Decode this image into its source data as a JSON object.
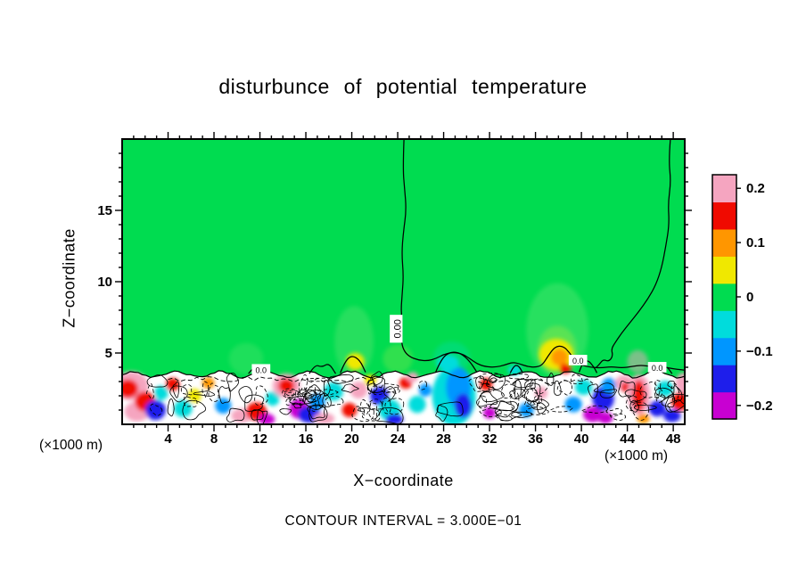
{
  "chart_data": {
    "type": "heatmap",
    "title": "disturbunce of potential temperature",
    "xlabel": "X−coordinate",
    "ylabel": "Z−coordinate",
    "x_unit_note": "(×1000 m)",
    "contour_interval_label": "CONTOUR INTERVAL = 3.000E−01",
    "contour_interval": 0.3,
    "xlim": [
      0,
      49
    ],
    "zlim": [
      0,
      20
    ],
    "x_major_ticks": [
      4,
      8,
      12,
      16,
      20,
      24,
      28,
      32,
      36,
      40,
      44,
      48
    ],
    "x_minor_step": 1,
    "z_major_ticks": [
      5,
      10,
      15
    ],
    "z_minor_step": 1,
    "background_value": 0,
    "colorbar": {
      "vmin": -0.225,
      "vmax": 0.225,
      "step": 0.05,
      "colors": [
        "#c800d2",
        "#1e1eeb",
        "#0096ff",
        "#00dcdc",
        "#00dc50",
        "#f0e800",
        "#ff9600",
        "#f00a00",
        "#f5a5c0"
      ],
      "tick_values": [
        0.2,
        0.1,
        0,
        -0.1,
        -0.2
      ],
      "tick_labels": [
        "0.2",
        "0.1",
        "0",
        "−0.1",
        "−0.2"
      ]
    },
    "band": {
      "top_z": 3.5,
      "amplitude": 0.2,
      "wavelength": 3.8,
      "jitter": 0.14
    },
    "plumes": [
      {
        "x": 20.2,
        "z": 5.8,
        "rx": 1.7,
        "rz": 2.5,
        "color": "#49e36b",
        "opacity": 0.5
      },
      {
        "x": 37.9,
        "z": 6.6,
        "rx": 2.7,
        "rz": 3.3,
        "color": "#49e36b",
        "opacity": 0.55
      },
      {
        "x": 37.9,
        "z": 5.2,
        "rx": 1.7,
        "rz": 1.7,
        "color": "#8ae84a",
        "opacity": 0.5
      },
      {
        "x": 10.8,
        "z": 4.6,
        "rx": 1.5,
        "rz": 1.1,
        "color": "#49e36b",
        "opacity": 0.4
      },
      {
        "x": 28.7,
        "z": 4.7,
        "rx": 1.6,
        "rz": 1.1,
        "color": "#00dcb4",
        "opacity": 0.35
      },
      {
        "x": 24.0,
        "z": 4.6,
        "rx": 1.3,
        "rz": 1.0,
        "color": "#8ae84a",
        "opacity": 0.35
      },
      {
        "x": 44.9,
        "z": 4.4,
        "rx": 0.9,
        "rz": 0.8,
        "color": "#f5a5c0",
        "opacity": 0.5
      }
    ],
    "blobs_schema": [
      "x",
      "z",
      "rx",
      "rz",
      "value"
    ],
    "blobs": [
      [
        0.8,
        2.7,
        1.5,
        1.0,
        0.19
      ],
      [
        0.5,
        2.5,
        0.9,
        0.65,
        0.14
      ],
      [
        1.3,
        0.9,
        1.1,
        0.7,
        0.19
      ],
      [
        2.0,
        1.6,
        0.9,
        0.7,
        0.14
      ],
      [
        2.9,
        1.0,
        0.9,
        0.7,
        -0.15
      ],
      [
        3.4,
        2.2,
        0.6,
        0.5,
        -0.05
      ],
      [
        4.4,
        2.8,
        0.6,
        0.45,
        0.14
      ],
      [
        5.3,
        1.1,
        0.8,
        0.6,
        -0.05
      ],
      [
        6.3,
        2.0,
        0.6,
        0.5,
        0.06
      ],
      [
        7.5,
        2.9,
        0.55,
        0.4,
        0.1
      ],
      [
        8.8,
        1.3,
        0.7,
        0.55,
        -0.1
      ],
      [
        10.4,
        0.6,
        0.9,
        0.5,
        0.19
      ],
      [
        11.7,
        0.9,
        0.9,
        0.65,
        0.14
      ],
      [
        12.6,
        0.35,
        0.7,
        0.4,
        -0.19
      ],
      [
        13.1,
        1.8,
        0.6,
        0.5,
        -0.05
      ],
      [
        14.3,
        2.7,
        1.2,
        0.85,
        0.19
      ],
      [
        14.3,
        2.7,
        0.7,
        0.5,
        0.14
      ],
      [
        15.4,
        1.1,
        0.85,
        0.7,
        -0.19
      ],
      [
        16.3,
        0.7,
        1.0,
        0.6,
        -0.15
      ],
      [
        17.0,
        1.6,
        0.7,
        0.55,
        -0.1
      ],
      [
        17.6,
        0.4,
        0.9,
        0.4,
        0.19
      ],
      [
        18.4,
        2.3,
        0.85,
        0.65,
        -0.05
      ],
      [
        19.8,
        1.0,
        0.65,
        0.5,
        0.14
      ],
      [
        20.6,
        2.4,
        0.75,
        0.6,
        0.19
      ],
      [
        20.3,
        4.4,
        0.8,
        0.6,
        0.06
      ],
      [
        21.6,
        3.1,
        0.55,
        0.4,
        0.06
      ],
      [
        22.4,
        2.0,
        0.8,
        0.65,
        -0.15
      ],
      [
        23.3,
        1.0,
        0.95,
        0.75,
        -0.05
      ],
      [
        23.7,
        0.35,
        0.75,
        0.4,
        -0.15
      ],
      [
        24.7,
        2.9,
        0.55,
        0.4,
        0.14
      ],
      [
        25.3,
        3.3,
        0.5,
        0.35,
        0.19
      ],
      [
        25.7,
        1.4,
        0.75,
        0.6,
        -0.05
      ],
      [
        26.4,
        2.4,
        0.55,
        0.45,
        -0.1
      ],
      [
        28.9,
        2.0,
        1.9,
        2.1,
        -0.05
      ],
      [
        29.3,
        2.6,
        1.1,
        1.4,
        -0.1
      ],
      [
        29.7,
        1.3,
        0.75,
        0.85,
        -0.15
      ],
      [
        28.4,
        4.3,
        0.95,
        0.55,
        -0.05
      ],
      [
        31.7,
        2.8,
        0.55,
        0.45,
        0.14
      ],
      [
        32.0,
        0.8,
        0.55,
        0.4,
        -0.19
      ],
      [
        34.2,
        3.8,
        0.6,
        0.35,
        -0.05
      ],
      [
        35.2,
        1.0,
        0.65,
        0.5,
        -0.1
      ],
      [
        36.5,
        2.2,
        0.55,
        0.45,
        0.19
      ],
      [
        37.8,
        4.9,
        1.5,
        1.1,
        0.06
      ],
      [
        38.1,
        4.7,
        0.75,
        0.6,
        0.1
      ],
      [
        38.6,
        3.9,
        0.5,
        0.35,
        0.14
      ],
      [
        39.3,
        1.4,
        0.75,
        0.55,
        -0.1
      ],
      [
        40.2,
        2.6,
        0.75,
        0.55,
        -0.05
      ],
      [
        41.0,
        0.7,
        0.85,
        0.55,
        -0.19
      ],
      [
        41.9,
        1.8,
        0.95,
        0.85,
        -0.15
      ],
      [
        42.4,
        2.7,
        0.65,
        0.55,
        -0.1
      ],
      [
        42.1,
        0.45,
        0.65,
        0.4,
        -0.19
      ],
      [
        43.7,
        2.9,
        0.75,
        0.55,
        0.19
      ],
      [
        43.9,
        2.6,
        0.45,
        0.35,
        0.14
      ],
      [
        45.0,
        2.1,
        1.0,
        1.4,
        0.19
      ],
      [
        45.0,
        2.0,
        0.55,
        1.1,
        0.14
      ],
      [
        45.4,
        0.4,
        0.55,
        0.35,
        0.1
      ],
      [
        46.6,
        1.1,
        0.75,
        0.55,
        -0.15
      ],
      [
        47.3,
        2.5,
        0.75,
        0.55,
        -0.05
      ],
      [
        47.9,
        0.6,
        0.75,
        0.45,
        -0.15
      ],
      [
        48.6,
        1.6,
        0.75,
        0.65,
        0.14
      ],
      [
        48.9,
        2.9,
        0.7,
        0.7,
        0.19
      ]
    ],
    "scribble_regions": [
      {
        "x0": 0.5,
        "x1": 48.5,
        "z0": 0.35,
        "z1": 3.2,
        "count": 42,
        "dashed": 0.3
      },
      {
        "x0": 14.8,
        "x1": 18.6,
        "z0": 0.5,
        "z1": 3.3,
        "count": 16,
        "dashed": 0.65
      },
      {
        "x0": 31.0,
        "x1": 38.6,
        "z0": 0.4,
        "z1": 3.4,
        "count": 30,
        "dashed": 0.75
      },
      {
        "x0": 20.5,
        "x1": 24.2,
        "z0": 0.5,
        "z1": 3.2,
        "count": 12,
        "dashed": 0.5
      },
      {
        "x0": 2.0,
        "x1": 12.5,
        "z0": 0.5,
        "z1": 3.1,
        "count": 12,
        "dashed": 0.25
      },
      {
        "x0": 42.0,
        "x1": 48.5,
        "z0": 0.5,
        "z1": 3.1,
        "count": 12,
        "dashed": 0.45
      }
    ],
    "dashed_streaks": [
      {
        "x0": 4,
        "x1": 22,
        "z": 3.15
      },
      {
        "x0": 31,
        "x1": 41,
        "z": 3.0
      }
    ],
    "zero_contours": [
      [
        [
          24.55,
          20
        ],
        [
          24.45,
          18
        ],
        [
          24.6,
          16.5
        ],
        [
          24.75,
          15
        ],
        [
          24.5,
          13.5
        ],
        [
          24.35,
          12
        ],
        [
          24.5,
          10.5
        ],
        [
          24.4,
          9.2
        ],
        [
          24.3,
          8.2
        ],
        [
          24.35,
          7.6
        ],
        [
          24.3,
          5.9
        ],
        [
          24.5,
          5.2
        ],
        [
          25.0,
          4.75
        ],
        [
          25.8,
          4.5
        ],
        [
          26.6,
          4.45
        ],
        [
          27.3,
          4.6
        ],
        [
          28.0,
          4.9
        ],
        [
          28.8,
          5.05
        ],
        [
          29.6,
          4.95
        ],
        [
          30.3,
          4.6
        ],
        [
          30.9,
          4.25
        ],
        [
          31.6,
          4.05
        ],
        [
          32.5,
          4.0
        ],
        [
          33.3,
          4.15
        ],
        [
          34.0,
          4.35
        ],
        [
          34.6,
          4.25
        ],
        [
          35.3,
          4.05
        ],
        [
          36.0,
          4.0
        ],
        [
          36.6,
          4.15
        ],
        [
          37.1,
          4.8
        ],
        [
          37.7,
          5.45
        ],
        [
          38.4,
          5.5
        ],
        [
          39.0,
          5.0
        ],
        [
          39.5,
          4.4
        ],
        [
          40.0,
          4.15
        ],
        [
          40.8,
          4.0
        ],
        [
          41.7,
          3.95
        ],
        [
          42.6,
          4.05
        ],
        [
          43.5,
          3.95
        ],
        [
          44.4,
          4.05
        ],
        [
          45.2,
          4.15
        ],
        [
          46.0,
          4.05
        ],
        [
          46.8,
          4.1
        ],
        [
          47.6,
          3.95
        ],
        [
          48.4,
          3.85
        ],
        [
          49.0,
          3.8
        ]
      ],
      [
        [
          47.75,
          20
        ],
        [
          47.6,
          18.5
        ],
        [
          47.8,
          17
        ],
        [
          47.55,
          15.5
        ],
        [
          47.65,
          14
        ],
        [
          47.35,
          12.5
        ],
        [
          47.0,
          11
        ],
        [
          46.5,
          9.8
        ],
        [
          45.8,
          8.8
        ],
        [
          45.0,
          7.9
        ],
        [
          44.2,
          7.1
        ],
        [
          43.5,
          6.4
        ],
        [
          43.0,
          5.8
        ],
        [
          42.6,
          5.3
        ],
        [
          42.75,
          4.8
        ],
        [
          42.4,
          4.4
        ],
        [
          41.9,
          4.55
        ],
        [
          41.55,
          4.2
        ],
        [
          41.3,
          4.0
        ]
      ],
      [
        [
          11.0,
          3.55
        ],
        [
          11.4,
          4.0
        ],
        [
          11.9,
          3.85
        ],
        [
          12.35,
          4.05
        ],
        [
          12.8,
          3.55
        ]
      ],
      [
        [
          16.3,
          3.55
        ],
        [
          16.8,
          4.2
        ],
        [
          17.4,
          4.0
        ],
        [
          18.0,
          4.3
        ],
        [
          18.6,
          3.55
        ]
      ],
      [
        [
          19.0,
          3.6
        ],
        [
          19.4,
          4.4
        ],
        [
          20.0,
          4.85
        ],
        [
          20.7,
          4.5
        ],
        [
          21.2,
          3.65
        ]
      ],
      [
        [
          27.3,
          3.65
        ],
        [
          27.8,
          4.6
        ],
        [
          28.6,
          5.1
        ],
        [
          29.5,
          5.0
        ],
        [
          30.3,
          4.4
        ],
        [
          30.9,
          3.65
        ]
      ],
      [
        [
          33.8,
          3.6
        ],
        [
          34.1,
          4.1
        ],
        [
          34.5,
          4.15
        ],
        [
          34.9,
          3.6
        ]
      ],
      [
        [
          39.8,
          3.65
        ],
        [
          40.1,
          4.35
        ],
        [
          40.6,
          4.5
        ],
        [
          41.1,
          4.0
        ],
        [
          41.35,
          3.6
        ]
      ],
      [
        [
          45.8,
          3.6
        ],
        [
          46.3,
          4.05
        ],
        [
          46.9,
          3.85
        ],
        [
          47.4,
          4.1
        ],
        [
          47.9,
          3.55
        ]
      ]
    ],
    "contour_labels": [
      {
        "x": 23.95,
        "z": 6.7,
        "text": "0.00",
        "rotate": -90,
        "size": 11
      },
      {
        "x": 12.1,
        "z": 3.8,
        "text": "0.0",
        "rotate": 0,
        "size": 9
      },
      {
        "x": 39.7,
        "z": 4.45,
        "text": "0.0",
        "rotate": 0,
        "size": 9
      },
      {
        "x": 46.6,
        "z": 3.95,
        "text": "0.0",
        "rotate": 0,
        "size": 9
      }
    ]
  }
}
